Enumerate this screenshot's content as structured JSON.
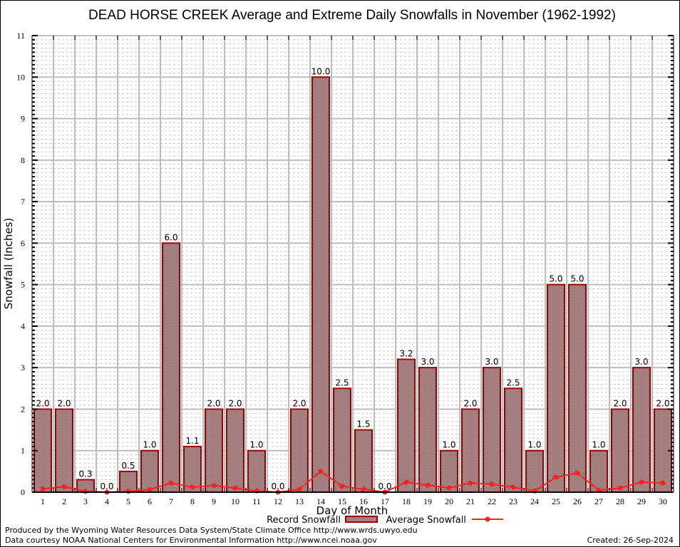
{
  "chart_data": {
    "type": "bar",
    "title": "DEAD HORSE CREEK Average and Extreme Daily Snowfalls in November (1962-1992)",
    "xlabel": "Day of Month",
    "ylabel": "Snowfall (Inches)",
    "ylim": [
      0,
      11
    ],
    "yticks": [
      "0",
      "1",
      "2",
      "3",
      "4",
      "5",
      "6",
      "7",
      "8",
      "9",
      "10",
      "11"
    ],
    "grid": true,
    "categories": [
      "1",
      "2",
      "3",
      "4",
      "5",
      "6",
      "7",
      "8",
      "9",
      "10",
      "11",
      "12",
      "13",
      "14",
      "15",
      "16",
      "17",
      "18",
      "19",
      "20",
      "21",
      "22",
      "23",
      "24",
      "25",
      "26",
      "27",
      "28",
      "29",
      "30"
    ],
    "series": [
      {
        "name": "Record Snowfall",
        "kind": "bar",
        "color": "#990000",
        "values": [
          2.0,
          2.0,
          0.3,
          0.0,
          0.5,
          1.0,
          6.0,
          1.1,
          2.0,
          2.0,
          1.0,
          0.0,
          2.0,
          10.0,
          2.5,
          1.5,
          0.0,
          3.2,
          3.0,
          1.0,
          2.0,
          3.0,
          2.5,
          1.0,
          5.0,
          5.0,
          1.0,
          2.0,
          3.0,
          2.0
        ],
        "labels": [
          "2.0",
          "2.0",
          "0.3",
          "0.0",
          "0.5",
          "1.0",
          "6.0",
          "1.1",
          "2.0",
          "2.0",
          "1.0",
          "0.0",
          "2.0",
          "10.0",
          "2.5",
          "1.5",
          "0.0",
          "3.2",
          "3.0",
          "1.0",
          "2.0",
          "3.0",
          "2.5",
          "1.0",
          "5.0",
          "5.0",
          "1.0",
          "2.0",
          "3.0",
          "2.0"
        ]
      },
      {
        "name": "Average Snowfall",
        "kind": "line",
        "color": "#ff2020",
        "values": [
          0.08,
          0.13,
          0.02,
          0.0,
          0.02,
          0.06,
          0.22,
          0.12,
          0.16,
          0.1,
          0.03,
          0.0,
          0.07,
          0.5,
          0.14,
          0.07,
          0.0,
          0.24,
          0.17,
          0.1,
          0.22,
          0.19,
          0.12,
          0.03,
          0.36,
          0.46,
          0.05,
          0.1,
          0.24,
          0.22
        ]
      }
    ],
    "legend": {
      "placement": "bottom-center",
      "entries": [
        "Record Snowfall",
        "Average Snowfall"
      ]
    }
  },
  "footer": {
    "line1": "Produced by the Wyoming Water Resources Data System/State Climate Office http://www.wrds.uwyo.edu",
    "line2": "Data courtesy NOAA National Centers for Environmental Information http://www.ncei.noaa.gov",
    "created": "Created: 26-Sep-2024"
  }
}
